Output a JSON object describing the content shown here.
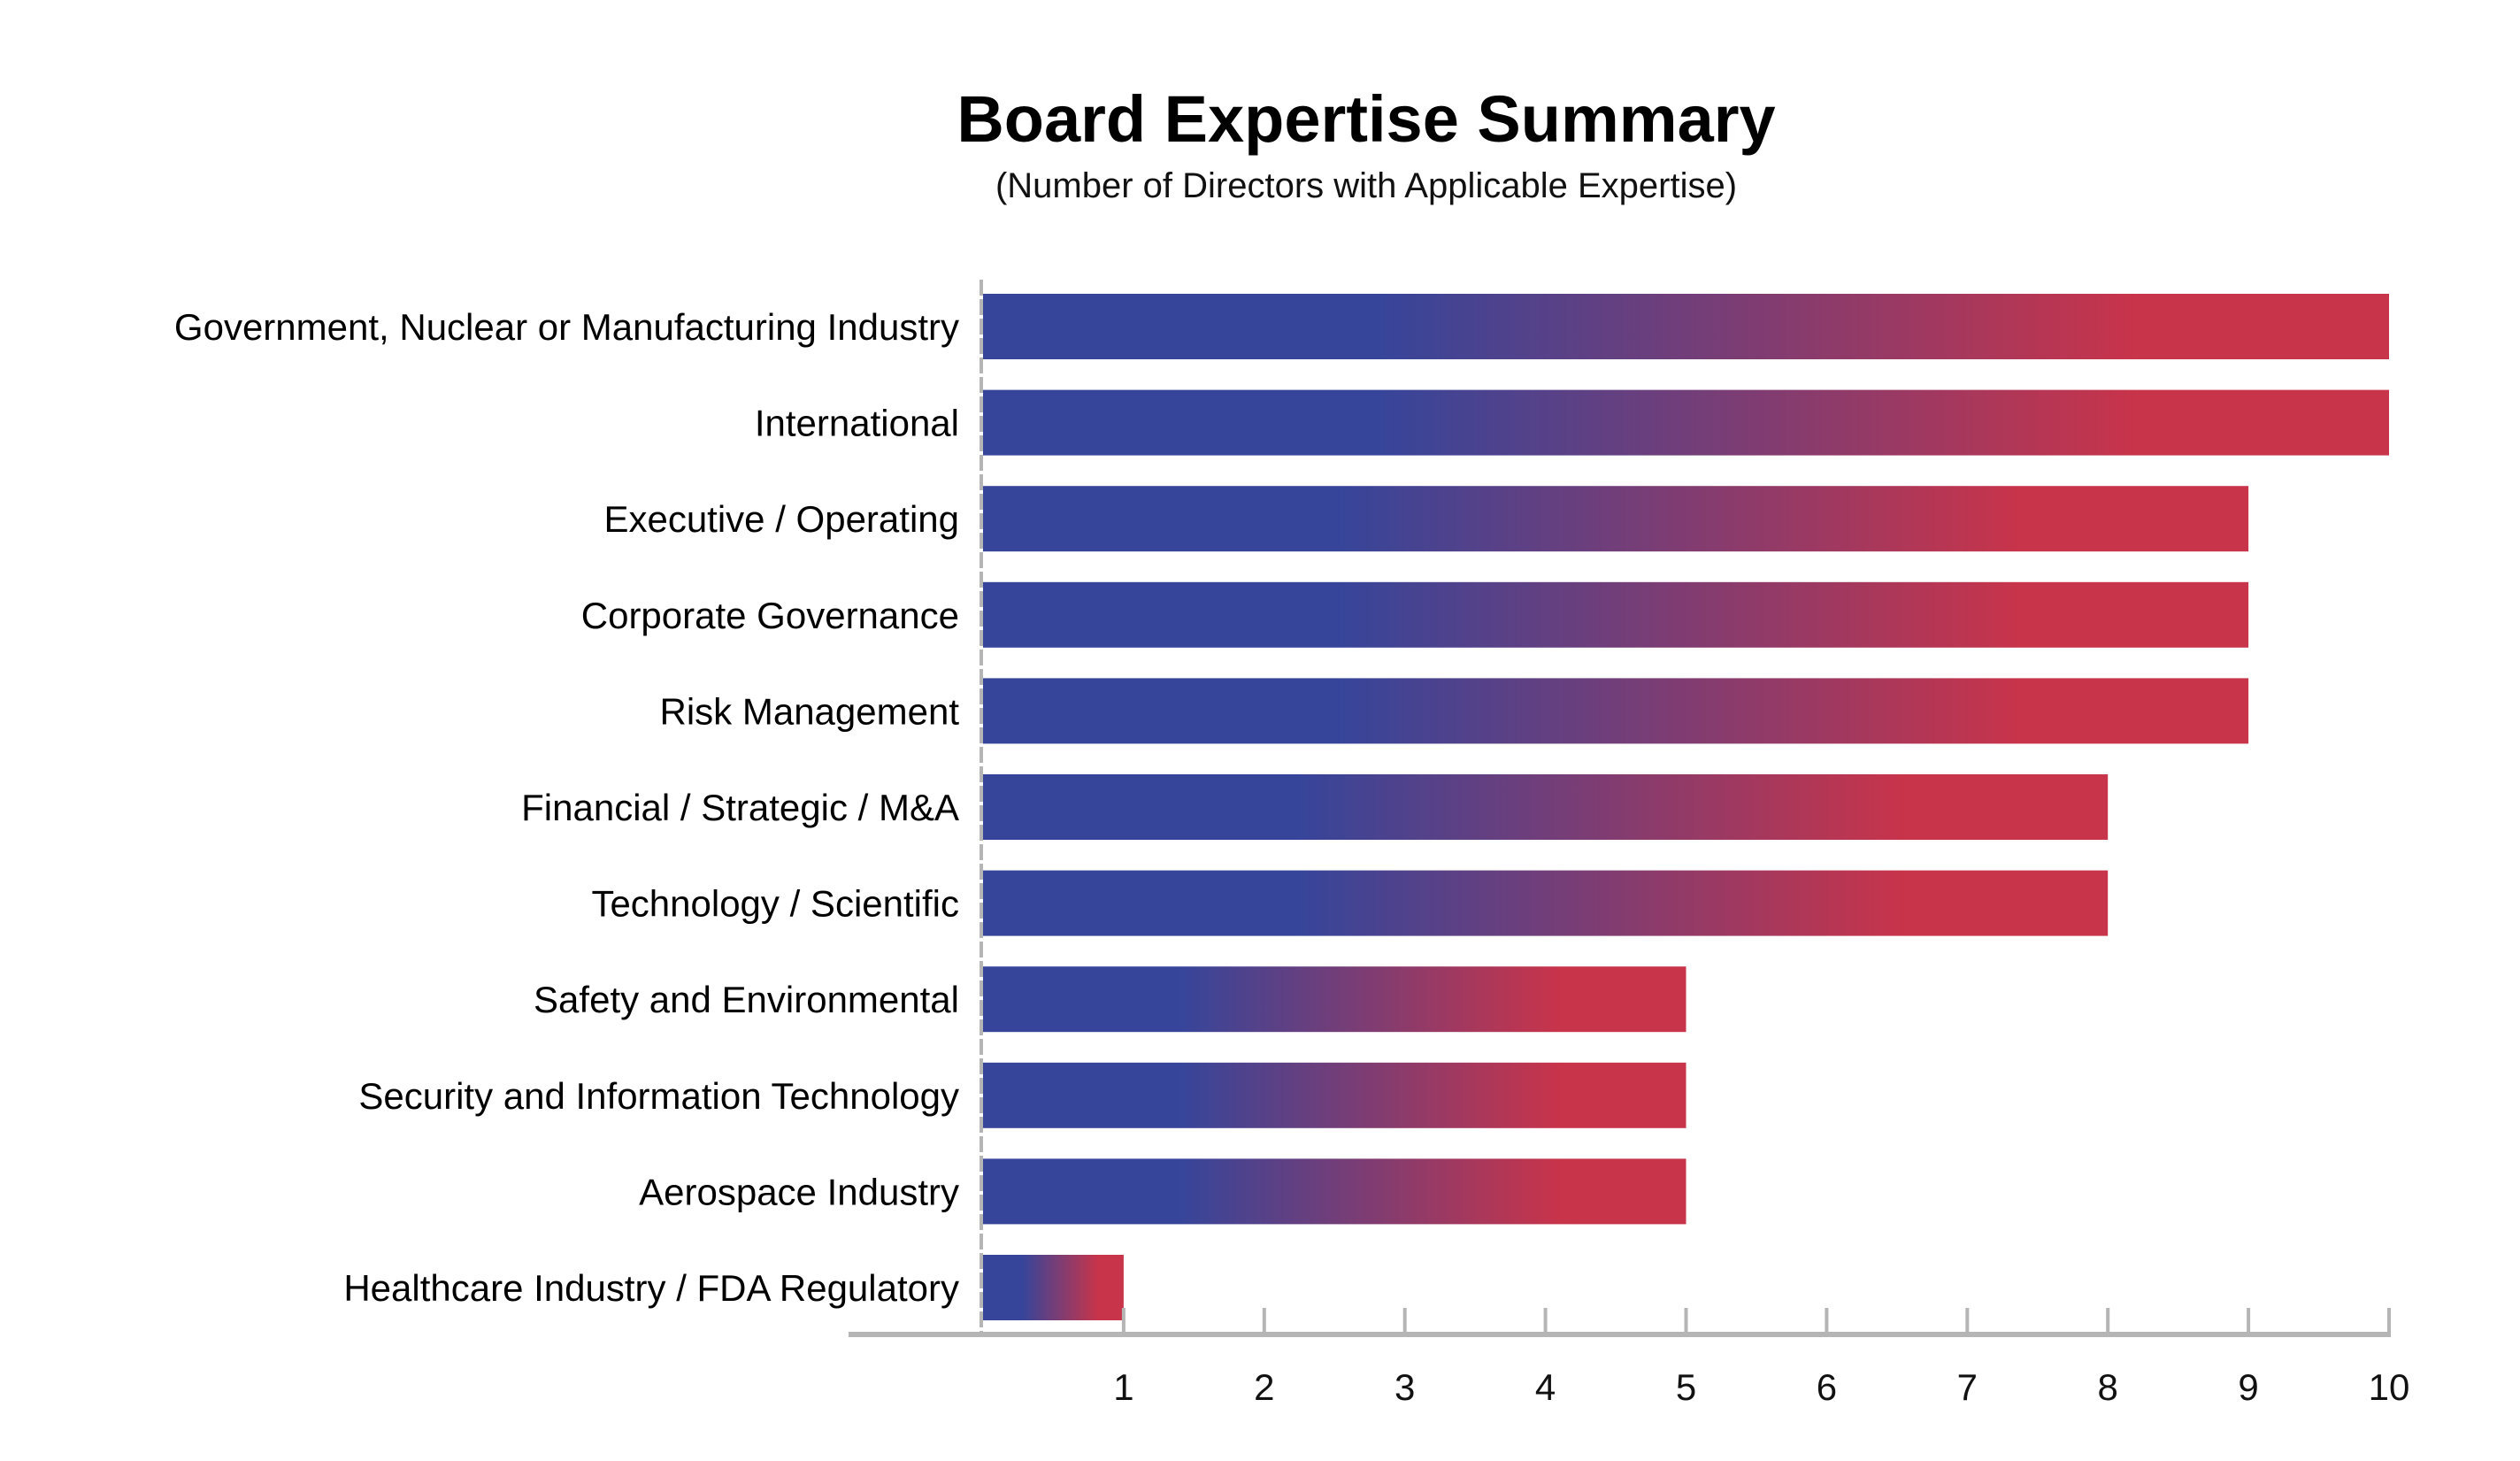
{
  "chart_data": {
    "type": "bar",
    "orientation": "horizontal",
    "title": "Board Expertise Summary",
    "subtitle": "(Number of Directors with Applicable Expertise)",
    "xlabel": "",
    "ylabel": "",
    "categories": [
      "Government, Nuclear or Manufacturing Industry",
      "International",
      "Executive / Operating",
      "Corporate Governance",
      "Risk Management",
      "Financial / Strategic / M&A",
      "Technology / Scientific",
      "Safety and Environmental",
      "Security and Information Technology",
      "Aerospace Industry",
      "Healthcare Industry / FDA Regulatory"
    ],
    "values": [
      10,
      10,
      9,
      9,
      9,
      8,
      8,
      5,
      5,
      5,
      1
    ],
    "xlim": [
      0,
      10
    ],
    "xticks": [
      "1",
      "2",
      "3",
      "4",
      "5",
      "6",
      "7",
      "8",
      "9",
      "10"
    ],
    "grid": false,
    "legend": "none",
    "colors": {
      "gradient_start": "#36459A",
      "gradient_end": "#C8344A",
      "axis": "#B5B5B5"
    }
  }
}
